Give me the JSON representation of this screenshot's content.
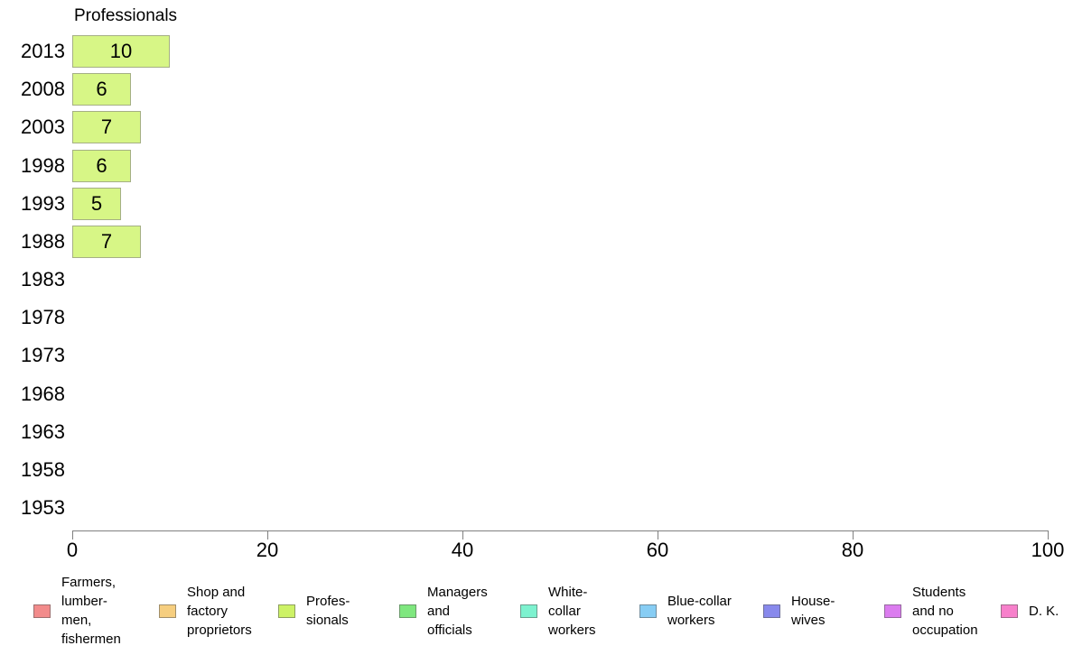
{
  "chart_data": {
    "type": "bar",
    "orientation": "horizontal",
    "title": "Professionals",
    "categories": [
      "2013",
      "2008",
      "2003",
      "1998",
      "1993",
      "1988",
      "1983",
      "1978",
      "1973",
      "1968",
      "1963",
      "1958",
      "1953"
    ],
    "values": [
      10,
      6,
      7,
      6,
      5,
      7,
      null,
      null,
      null,
      null,
      null,
      null,
      null
    ],
    "value_labels": [
      "10",
      "6",
      "7",
      "6",
      "5",
      "7",
      "",
      "",
      "",
      "",
      "",
      "",
      ""
    ],
    "xlabel": "",
    "ylabel": "",
    "xlim": [
      0,
      100
    ],
    "x_ticks": [
      0,
      20,
      40,
      60,
      80,
      100
    ],
    "x_tick_labels": [
      "0",
      "20",
      "40",
      "60",
      "80",
      "100"
    ],
    "grid": false,
    "legend_position": "bottom",
    "bar_fill_color": "#d7f686",
    "bar_border_color": "#a5af85",
    "axis_color": "#808080",
    "legend": [
      {
        "name": "farmers-lumbermen-fishermen",
        "lines": [
          "Farmers,",
          "lumber-",
          "men,",
          "fishermen"
        ],
        "color": "#f28b8b"
      },
      {
        "name": "shop-and-factory-proprietors",
        "lines": [
          "Shop and",
          "factory",
          "proprietors"
        ],
        "color": "#f6ce7f"
      },
      {
        "name": "professionals",
        "lines": [
          "Profes-",
          "sionals"
        ],
        "color": "#cdf266"
      },
      {
        "name": "managers-and-officials",
        "lines": [
          "Managers",
          "and",
          "officials"
        ],
        "color": "#7fe77f"
      },
      {
        "name": "white-collar-workers",
        "lines": [
          "White-",
          "collar",
          "workers"
        ],
        "color": "#7df2cf"
      },
      {
        "name": "blue-collar-workers",
        "lines": [
          "Blue-collar",
          "workers"
        ],
        "color": "#87cdf4"
      },
      {
        "name": "housewives",
        "lines": [
          "House-",
          "wives"
        ],
        "color": "#8889ec"
      },
      {
        "name": "students-and-no-occupation",
        "lines": [
          "Students",
          "and no",
          "occupation"
        ],
        "color": "#db7cef"
      },
      {
        "name": "d-k",
        "lines": [
          "D. K."
        ],
        "color": "#f780cb"
      }
    ]
  }
}
